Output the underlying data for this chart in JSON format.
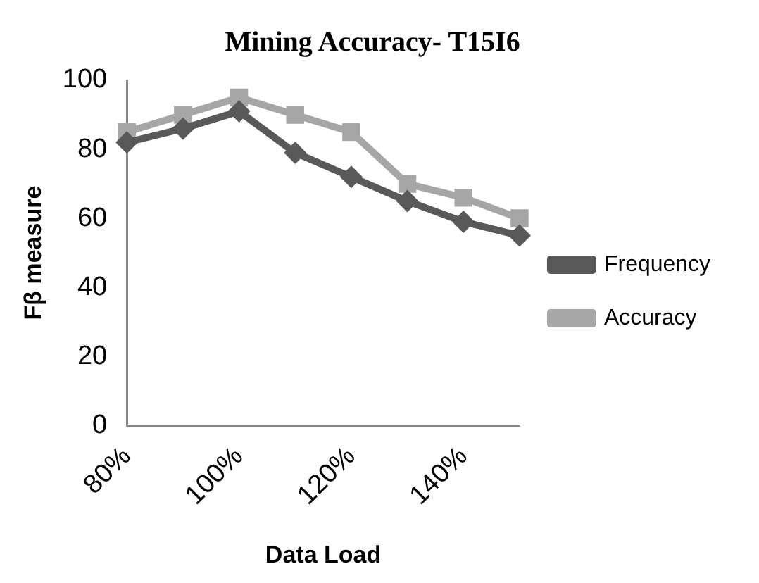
{
  "chart_data": {
    "type": "line",
    "title": "Mining Accuracy- T15I6",
    "xlabel": "Data Load",
    "ylabel": "Fβ measure",
    "categories": [
      "80%",
      null,
      "100%",
      null,
      "120%",
      null,
      "140%",
      null
    ],
    "series": [
      {
        "name": "Frequency",
        "color": "#595959",
        "values": [
          82,
          86,
          91,
          79,
          72,
          65,
          59,
          55
        ],
        "marker": "diamond"
      },
      {
        "name": "Accuracy",
        "color": "#a6a6a6",
        "values": [
          85,
          90,
          95,
          90,
          85,
          70,
          66,
          60
        ],
        "marker": "square"
      }
    ],
    "ylim": [
      0,
      100
    ],
    "yticks": [
      0,
      20,
      40,
      60,
      80,
      100
    ],
    "grid": false,
    "legend": "right"
  }
}
